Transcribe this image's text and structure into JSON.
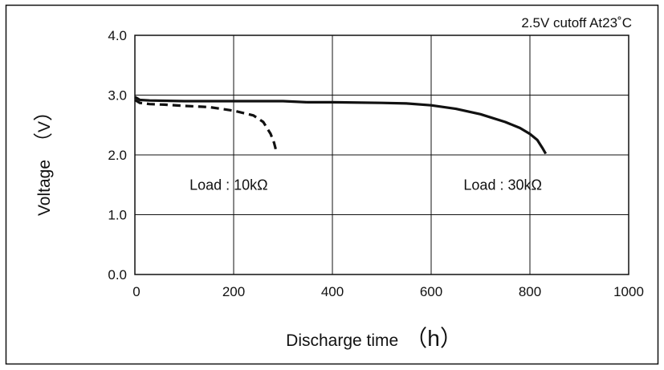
{
  "chart_data": {
    "type": "line",
    "title": "",
    "condition_note": "2.5V cutoff  At23˚C",
    "xlabel": "Discharge time",
    "xunit": "h",
    "ylabel": "Voltage",
    "yunit": "V",
    "xlim": [
      0,
      1000
    ],
    "ylim": [
      0.0,
      4.0
    ],
    "xticks": [
      0,
      200,
      400,
      600,
      800,
      1000
    ],
    "yticks": [
      0.0,
      1.0,
      2.0,
      3.0,
      4.0
    ],
    "xtick_labels": [
      "0",
      "200",
      "400",
      "600",
      "800",
      "1000"
    ],
    "ytick_labels": [
      "0.0",
      "1.0",
      "2.0",
      "3.0",
      "4.0"
    ],
    "grid": true,
    "series": [
      {
        "name": "Load : 10kΩ",
        "style": "dashed",
        "x": [
          0,
          10,
          30,
          60,
          100,
          150,
          200,
          240,
          260,
          275,
          282,
          287
        ],
        "y": [
          2.92,
          2.87,
          2.85,
          2.84,
          2.82,
          2.8,
          2.74,
          2.66,
          2.55,
          2.35,
          2.2,
          2.04
        ]
      },
      {
        "name": "Load : 30kΩ",
        "style": "solid",
        "x": [
          0,
          10,
          30,
          100,
          200,
          300,
          350,
          400,
          500,
          550,
          600,
          650,
          700,
          750,
          780,
          800,
          815,
          825,
          832
        ],
        "y": [
          2.97,
          2.92,
          2.91,
          2.9,
          2.9,
          2.9,
          2.88,
          2.88,
          2.87,
          2.86,
          2.83,
          2.77,
          2.68,
          2.55,
          2.45,
          2.35,
          2.25,
          2.12,
          2.02
        ]
      }
    ],
    "annotations": [
      {
        "text": "Load : 10kΩ",
        "x": 190,
        "y": 1.5
      },
      {
        "text": "Load : 30kΩ",
        "x": 745,
        "y": 1.5
      }
    ]
  }
}
